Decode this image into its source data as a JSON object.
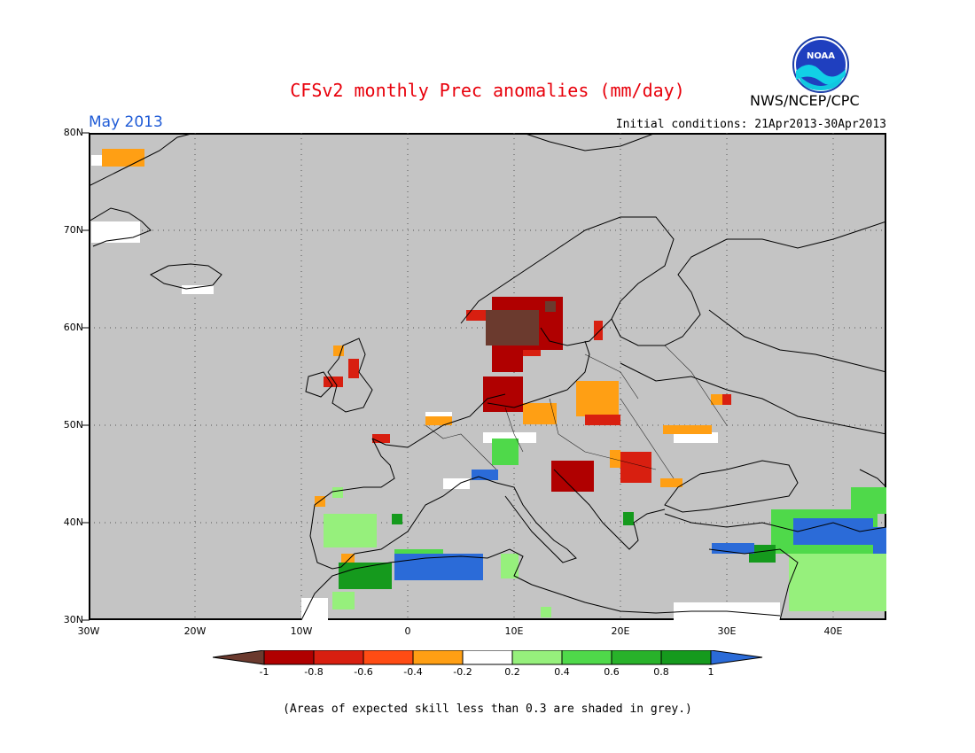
{
  "header": {
    "title": "CFSv2 monthly Prec anomalies (mm/day)",
    "month": "May 2013",
    "initial_conditions": "Initial conditions: 21Apr2013-30Apr2013",
    "agency": "NWS/NCEP/CPC",
    "logo_text": "NOAA"
  },
  "map": {
    "lat_labels": [
      "80N",
      "70N",
      "60N",
      "50N",
      "40N",
      "30N"
    ],
    "lon_labels": [
      "30W",
      "20W",
      "10W",
      "0",
      "10E",
      "20E",
      "30E",
      "40E"
    ],
    "land_mask_color": "#c4c4c4"
  },
  "colorbar": {
    "labels": [
      "-1",
      "-0.8",
      "-0.6",
      "-0.4",
      "-0.2",
      "0.2",
      "0.4",
      "0.6",
      "0.8",
      "1"
    ],
    "colors": [
      "#6b3a2e",
      "#b00000",
      "#d81f10",
      "#ff4c14",
      "#ff9f14",
      "#ffffff",
      "#96f07c",
      "#4fd94a",
      "#28b22a",
      "#159a1d",
      "#2b6bd8"
    ]
  },
  "footnote": "(Areas of expected skill less than 0.3 are shaded in grey.)"
}
